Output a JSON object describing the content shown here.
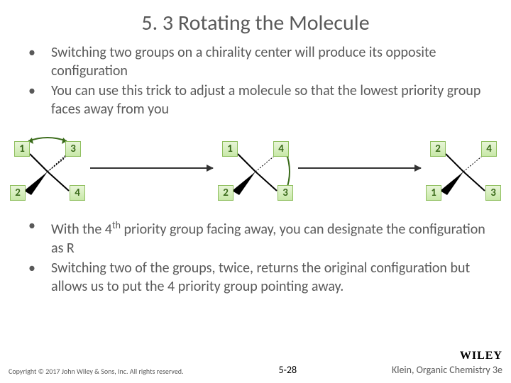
{
  "title": "5. 3 Rotating the Molecule",
  "bullets_top": [
    "Switching two groups on a chirality center will produce its opposite configuration",
    "You can use this trick to adjust a molecule so that the lowest priority group faces away from you"
  ],
  "bullets_bottom": [
    "With the 4<sup>th</sup> priority group facing away, you can designate the configuration as R",
    "Switching two of the groups, twice, returns the original configuration but allows us to put the 4 priority group pointing away."
  ],
  "molecules": [
    {
      "labels": {
        "top_left": "1",
        "top_right": "3",
        "bottom_left": "2",
        "bottom_right": "4"
      },
      "swap": "top"
    },
    {
      "labels": {
        "top_left": "1",
        "top_right": "4",
        "bottom_left": "2",
        "bottom_right": "3"
      },
      "swap": "right"
    },
    {
      "labels": {
        "top_left": "2",
        "top_right": "4",
        "bottom_left": "1",
        "bottom_right": "3"
      },
      "swap": null
    }
  ],
  "colors": {
    "text": "#595959",
    "box_bg_top": "#e8f5d8",
    "box_bg_bottom": "#c8e8a8",
    "box_border": "#8fbf5f",
    "box_text": "#3a6b1a",
    "arrow": "#333333"
  },
  "footer": {
    "copyright": "Copyright © 2017 John Wiley & Sons, Inc. All rights reserved.",
    "page": "5-28",
    "logo": "WILEY",
    "book": "Klein, Organic Chemistry 3e"
  }
}
